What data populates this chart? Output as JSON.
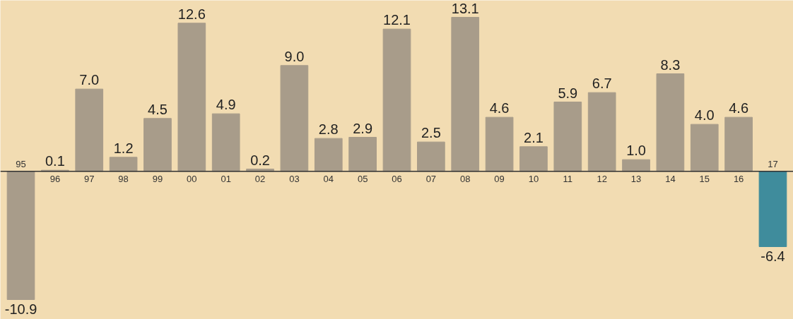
{
  "chart_data": {
    "type": "bar",
    "categories": [
      "95",
      "96",
      "97",
      "98",
      "99",
      "00",
      "01",
      "02",
      "03",
      "04",
      "05",
      "06",
      "07",
      "08",
      "09",
      "10",
      "11",
      "12",
      "13",
      "14",
      "15",
      "16",
      "17"
    ],
    "values": [
      -10.9,
      0.1,
      7.0,
      1.2,
      4.5,
      12.6,
      4.9,
      0.2,
      9.0,
      2.8,
      2.9,
      12.1,
      2.5,
      13.1,
      4.6,
      2.1,
      5.9,
      6.7,
      1.0,
      8.3,
      4.0,
      4.6,
      -6.4
    ],
    "colors": [
      "#a89c8a",
      "#a89c8a",
      "#a89c8a",
      "#a89c8a",
      "#a89c8a",
      "#a89c8a",
      "#a89c8a",
      "#a89c8a",
      "#a89c8a",
      "#a89c8a",
      "#a89c8a",
      "#a89c8a",
      "#a89c8a",
      "#a89c8a",
      "#a89c8a",
      "#a89c8a",
      "#a89c8a",
      "#a89c8a",
      "#a89c8a",
      "#a89c8a",
      "#a89c8a",
      "#a89c8a",
      "#3f8c9c"
    ],
    "value_labels": [
      "-10.9",
      "0.1",
      "7.0",
      "1.2",
      "4.5",
      "12.6",
      "4.9",
      "0.2",
      "9.0",
      "2.8",
      "2.9",
      "12.1",
      "2.5",
      "13.1",
      "4.6",
      "2.1",
      "5.9",
      "6.7",
      "1.0",
      "8.3",
      "4.0",
      "4.6",
      "-6.4"
    ],
    "grid": false
  }
}
